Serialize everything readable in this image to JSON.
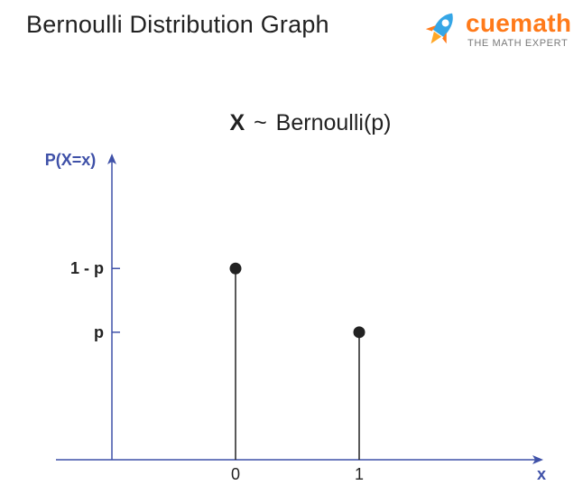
{
  "page": {
    "title": "Bernoulli Distribution Graph"
  },
  "logo": {
    "name": "cuemath",
    "tagline": "THE MATH EXPERT",
    "icon": "rocket-icon",
    "brand_color": "#ff7a1a",
    "rocket_blue": "#35a6e6"
  },
  "chart_data": {
    "type": "stem",
    "title": "X ~ Bernoulli(p)",
    "title_parts": {
      "var": "X",
      "tilde": "~",
      "dist": "Bernoulli(p)"
    },
    "ylabel": "P(X=x)",
    "xlabel": "x",
    "x_ticks": [
      "0",
      "1"
    ],
    "y_ticks": [
      "1 - p",
      "p"
    ],
    "points": [
      {
        "x": 0,
        "label": "1 - p",
        "y": 0.6
      },
      {
        "x": 1,
        "label": "p",
        "y": 0.4
      }
    ],
    "xlim": [
      -1,
      3
    ],
    "ylim": [
      0,
      0.85
    ],
    "axis_color": "#3f51a8",
    "stem_color": "#222222"
  }
}
